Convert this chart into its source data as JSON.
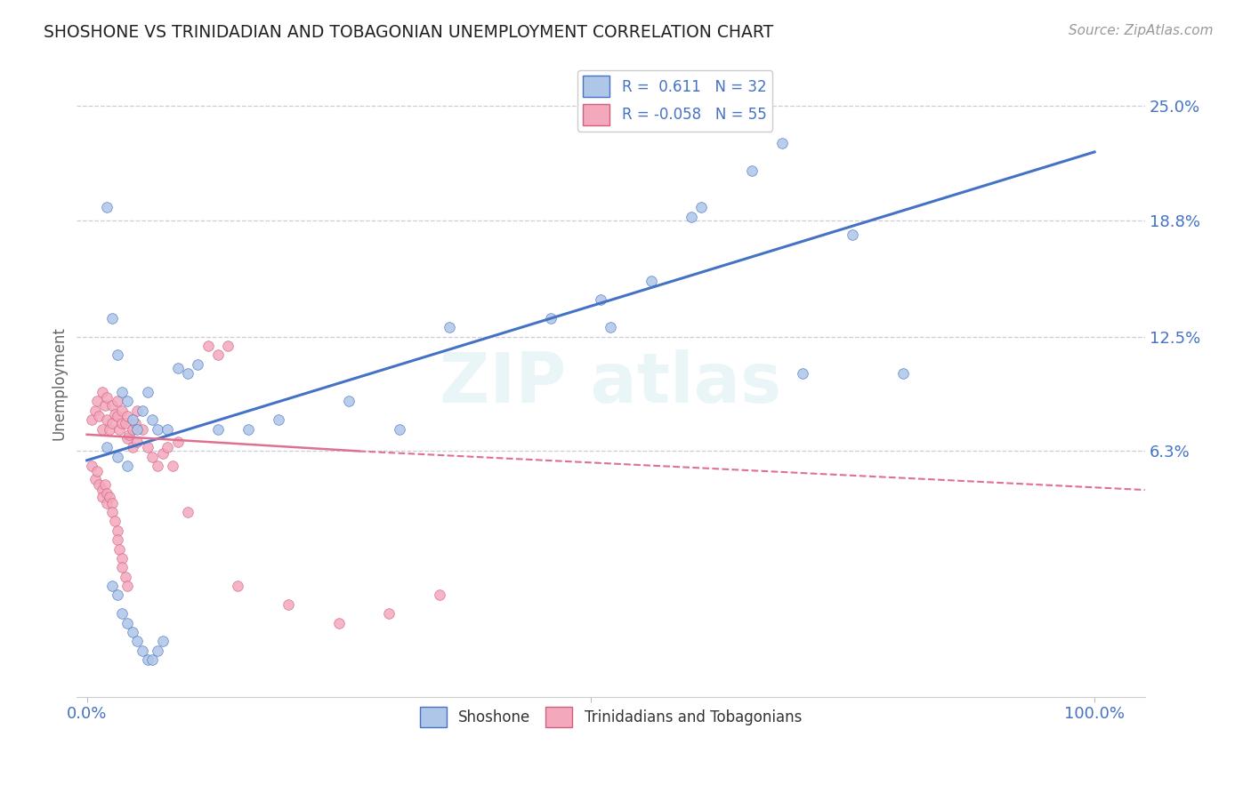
{
  "title": "SHOSHONE VS TRINIDADIAN AND TOBAGONIAN UNEMPLOYMENT CORRELATION CHART",
  "source": "Source: ZipAtlas.com",
  "ylabel": "Unemployment",
  "ytick_vals": [
    0.063,
    0.125,
    0.188,
    0.25
  ],
  "ytick_labels": [
    "6.3%",
    "12.5%",
    "18.8%",
    "25.0%"
  ],
  "xlim": [
    -0.01,
    1.05
  ],
  "ylim": [
    -0.07,
    0.27
  ],
  "shoshone_color": "#aec6e8",
  "shoshone_edge": "#4472c4",
  "trinidadian_color": "#f4a8bc",
  "trinidadian_edge": "#d06080",
  "shoshone_line_color": "#4472c4",
  "trinidadian_line_color": "#e07090",
  "shoshone_line": {
    "x0": 0.0,
    "y0": 0.058,
    "x1": 1.0,
    "y1": 0.225
  },
  "trinidadian_line_solid": {
    "x0": 0.0,
    "y0": 0.072,
    "x1": 0.27,
    "y1": 0.063
  },
  "trinidadian_line_dashed": {
    "x0": 0.27,
    "y0": 0.063,
    "x1": 1.05,
    "y1": 0.042
  },
  "shoshone_scatter": [
    [
      0.02,
      0.195
    ],
    [
      0.025,
      0.135
    ],
    [
      0.03,
      0.115
    ],
    [
      0.035,
      0.095
    ],
    [
      0.04,
      0.09
    ],
    [
      0.045,
      0.08
    ],
    [
      0.05,
      0.075
    ],
    [
      0.055,
      0.085
    ],
    [
      0.06,
      0.095
    ],
    [
      0.065,
      0.08
    ],
    [
      0.07,
      0.075
    ],
    [
      0.08,
      0.075
    ],
    [
      0.09,
      0.108
    ],
    [
      0.1,
      0.105
    ],
    [
      0.11,
      0.11
    ],
    [
      0.13,
      0.075
    ],
    [
      0.16,
      0.075
    ],
    [
      0.19,
      0.08
    ],
    [
      0.26,
      0.09
    ],
    [
      0.31,
      0.075
    ],
    [
      0.36,
      0.13
    ],
    [
      0.46,
      0.135
    ],
    [
      0.51,
      0.145
    ],
    [
      0.56,
      0.155
    ],
    [
      0.61,
      0.195
    ],
    [
      0.66,
      0.215
    ],
    [
      0.69,
      0.23
    ],
    [
      0.71,
      0.105
    ],
    [
      0.76,
      0.18
    ],
    [
      0.81,
      0.105
    ],
    [
      0.52,
      0.13
    ],
    [
      0.6,
      0.19
    ],
    [
      0.02,
      0.065
    ],
    [
      0.03,
      0.06
    ],
    [
      0.04,
      0.055
    ],
    [
      0.025,
      -0.01
    ],
    [
      0.03,
      -0.015
    ],
    [
      0.035,
      -0.025
    ],
    [
      0.04,
      -0.03
    ],
    [
      0.045,
      -0.035
    ],
    [
      0.05,
      -0.04
    ],
    [
      0.055,
      -0.045
    ],
    [
      0.06,
      -0.05
    ],
    [
      0.065,
      -0.05
    ],
    [
      0.07,
      -0.045
    ],
    [
      0.075,
      -0.04
    ]
  ],
  "trinidadian_scatter": [
    [
      0.005,
      0.08
    ],
    [
      0.008,
      0.085
    ],
    [
      0.01,
      0.09
    ],
    [
      0.012,
      0.082
    ],
    [
      0.015,
      0.095
    ],
    [
      0.015,
      0.075
    ],
    [
      0.018,
      0.088
    ],
    [
      0.02,
      0.08
    ],
    [
      0.02,
      0.092
    ],
    [
      0.022,
      0.075
    ],
    [
      0.025,
      0.088
    ],
    [
      0.025,
      0.078
    ],
    [
      0.028,
      0.083
    ],
    [
      0.03,
      0.09
    ],
    [
      0.03,
      0.082
    ],
    [
      0.032,
      0.075
    ],
    [
      0.035,
      0.085
    ],
    [
      0.035,
      0.078
    ],
    [
      0.038,
      0.078
    ],
    [
      0.04,
      0.082
    ],
    [
      0.04,
      0.07
    ],
    [
      0.042,
      0.072
    ],
    [
      0.045,
      0.075
    ],
    [
      0.045,
      0.065
    ],
    [
      0.048,
      0.078
    ],
    [
      0.05,
      0.085
    ],
    [
      0.05,
      0.068
    ],
    [
      0.055,
      0.075
    ],
    [
      0.06,
      0.065
    ],
    [
      0.065,
      0.06
    ],
    [
      0.07,
      0.055
    ],
    [
      0.075,
      0.062
    ],
    [
      0.08,
      0.065
    ],
    [
      0.085,
      0.055
    ],
    [
      0.09,
      0.068
    ],
    [
      0.005,
      0.055
    ],
    [
      0.008,
      0.048
    ],
    [
      0.01,
      0.052
    ],
    [
      0.012,
      0.045
    ],
    [
      0.015,
      0.042
    ],
    [
      0.015,
      0.038
    ],
    [
      0.018,
      0.045
    ],
    [
      0.02,
      0.04
    ],
    [
      0.02,
      0.035
    ],
    [
      0.022,
      0.038
    ],
    [
      0.025,
      0.035
    ],
    [
      0.025,
      0.03
    ],
    [
      0.028,
      0.025
    ],
    [
      0.03,
      0.02
    ],
    [
      0.03,
      0.015
    ],
    [
      0.032,
      0.01
    ],
    [
      0.035,
      0.005
    ],
    [
      0.035,
      0.0
    ],
    [
      0.038,
      -0.005
    ],
    [
      0.04,
      -0.01
    ],
    [
      0.12,
      0.12
    ],
    [
      0.13,
      0.115
    ],
    [
      0.14,
      0.12
    ],
    [
      0.1,
      0.03
    ],
    [
      0.15,
      -0.01
    ],
    [
      0.2,
      -0.02
    ],
    [
      0.25,
      -0.03
    ],
    [
      0.3,
      -0.025
    ],
    [
      0.35,
      -0.015
    ]
  ],
  "background_color": "#ffffff",
  "grid_color": "#ccccdd"
}
